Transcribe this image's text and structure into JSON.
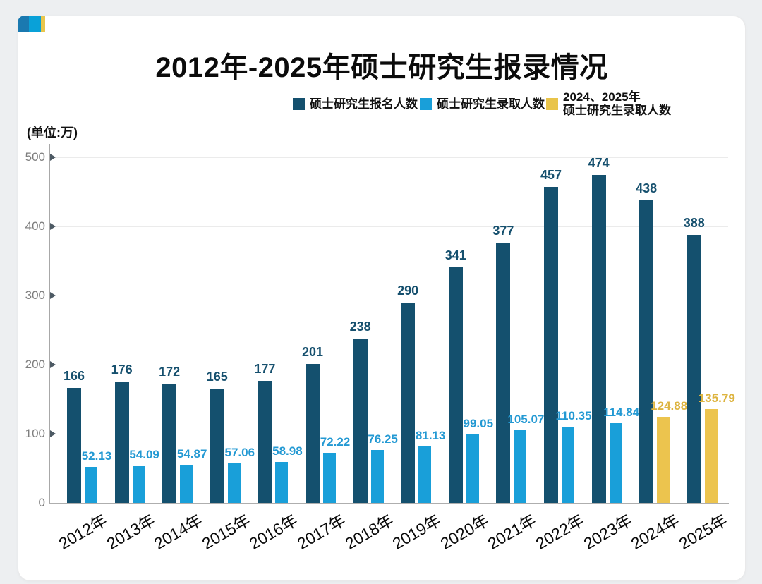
{
  "header": {
    "title": "2012年-2025年硕士研究生报录情况"
  },
  "legend": {
    "items": [
      {
        "label": "硕士研究生报名人数",
        "color": "#14506e"
      },
      {
        "label": "硕士研究生录取人数",
        "color": "#199fd9"
      },
      {
        "line1": "2024、2025年",
        "line2": "硕士研究生录取人数",
        "color": "#e9c44a"
      }
    ]
  },
  "chart": {
    "unit_label": "(单位:万)"
  },
  "colors": {
    "applicants_bar": "#14506e",
    "admitted_bar": "#199fd9",
    "admitted_highlight_bar": "#ecc44e",
    "applicants_label": "#16506e",
    "admitted_label": "#2399d3",
    "admitted_highlight_label": "#ddb440",
    "decor_blocks": [
      "#1a79b0",
      "#09a1d8",
      "#e8c64d"
    ]
  },
  "chart_data": {
    "type": "bar",
    "title": "2012年-2025年硕士研究生报录情况",
    "unit": "万",
    "categories": [
      "2012年",
      "2013年",
      "2014年",
      "2015年",
      "2016年",
      "2017年",
      "2018年",
      "2019年",
      "2020年",
      "2021年",
      "2022年",
      "2023年",
      "2024年",
      "2025年"
    ],
    "series": [
      {
        "name": "硕士研究生报名人数",
        "color": "#14506e",
        "label_color": "#16506e",
        "values": [
          166,
          176,
          172,
          165,
          177,
          201,
          238,
          290,
          341,
          377,
          457,
          474,
          438,
          388
        ]
      },
      {
        "name": "硕士研究生录取人数",
        "color": "#199fd9",
        "label_color": "#2399d3",
        "highlight_color": "#ecc44e",
        "highlight_label_color": "#ddb440",
        "highlight_categories": [
          "2024年",
          "2025年"
        ],
        "highlight_legend_name": "2024、2025年硕士研究生录取人数",
        "values": [
          52.13,
          54.09,
          54.87,
          57.06,
          58.98,
          72.22,
          76.25,
          81.13,
          99.05,
          105.07,
          110.35,
          114.84,
          124.88,
          135.79
        ]
      }
    ],
    "xlabel": "",
    "ylabel": "(单位:万)",
    "ylim": [
      0,
      500
    ],
    "yticks": [
      0,
      100,
      200,
      300,
      400,
      500
    ],
    "grid": true,
    "legend_position": "top"
  }
}
